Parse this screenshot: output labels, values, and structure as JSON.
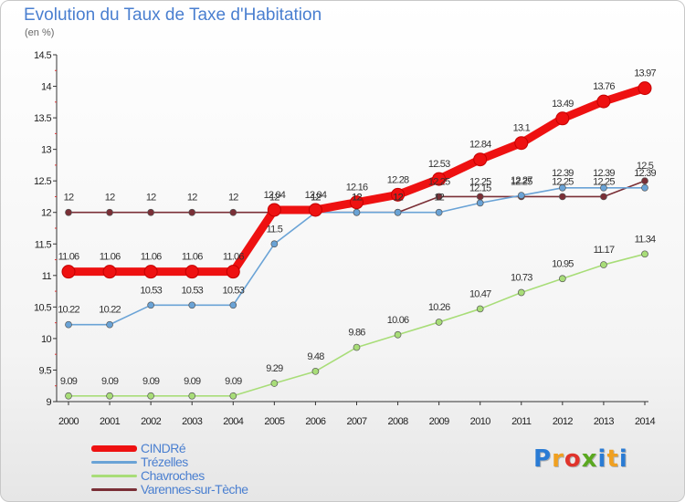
{
  "title": "Evolution du Taux de Taxe d'Habitation",
  "subtitle": "(en %)",
  "logo_text": "Proxiti",
  "chart_data": {
    "type": "line",
    "x": [
      "2000",
      "2001",
      "2002",
      "2003",
      "2004",
      "2005",
      "2006",
      "2007",
      "2008",
      "2009",
      "2010",
      "2011",
      "2012",
      "2013",
      "2014"
    ],
    "ylim": [
      9,
      14.5
    ],
    "yticks": [
      "9",
      "9.5",
      "10",
      "10.5",
      "11",
      "11.5",
      "12",
      "12.5",
      "13",
      "13.5",
      "14",
      "14.5"
    ],
    "grid": false,
    "legend_position": "bottom-left",
    "series": [
      {
        "name": "CINDRé",
        "color": "#ee1111",
        "values": [
          11.06,
          11.06,
          11.06,
          11.06,
          11.06,
          12.04,
          12.04,
          12.16,
          12.28,
          12.53,
          12.84,
          13.1,
          13.49,
          13.76,
          13.97
        ]
      },
      {
        "name": "Trézelles",
        "color": "#6aa3d6",
        "values": [
          10.22,
          10.22,
          10.53,
          10.53,
          10.53,
          11.5,
          12,
          12,
          12,
          12,
          12.15,
          12.27,
          12.39,
          12.39,
          12.39
        ]
      },
      {
        "name": "Chavroches",
        "color": "#a8dd78",
        "values": [
          9.09,
          9.09,
          9.09,
          9.09,
          9.09,
          9.29,
          9.48,
          9.86,
          10.06,
          10.26,
          10.47,
          10.73,
          10.95,
          11.17,
          11.34
        ]
      },
      {
        "name": "Varennes-sur-Tèche",
        "color": "#7a2f36",
        "values": [
          12,
          12,
          12,
          12,
          12,
          12,
          12,
          12,
          12,
          12.25,
          12.25,
          12.25,
          12.25,
          12.25,
          12.5
        ]
      }
    ]
  }
}
